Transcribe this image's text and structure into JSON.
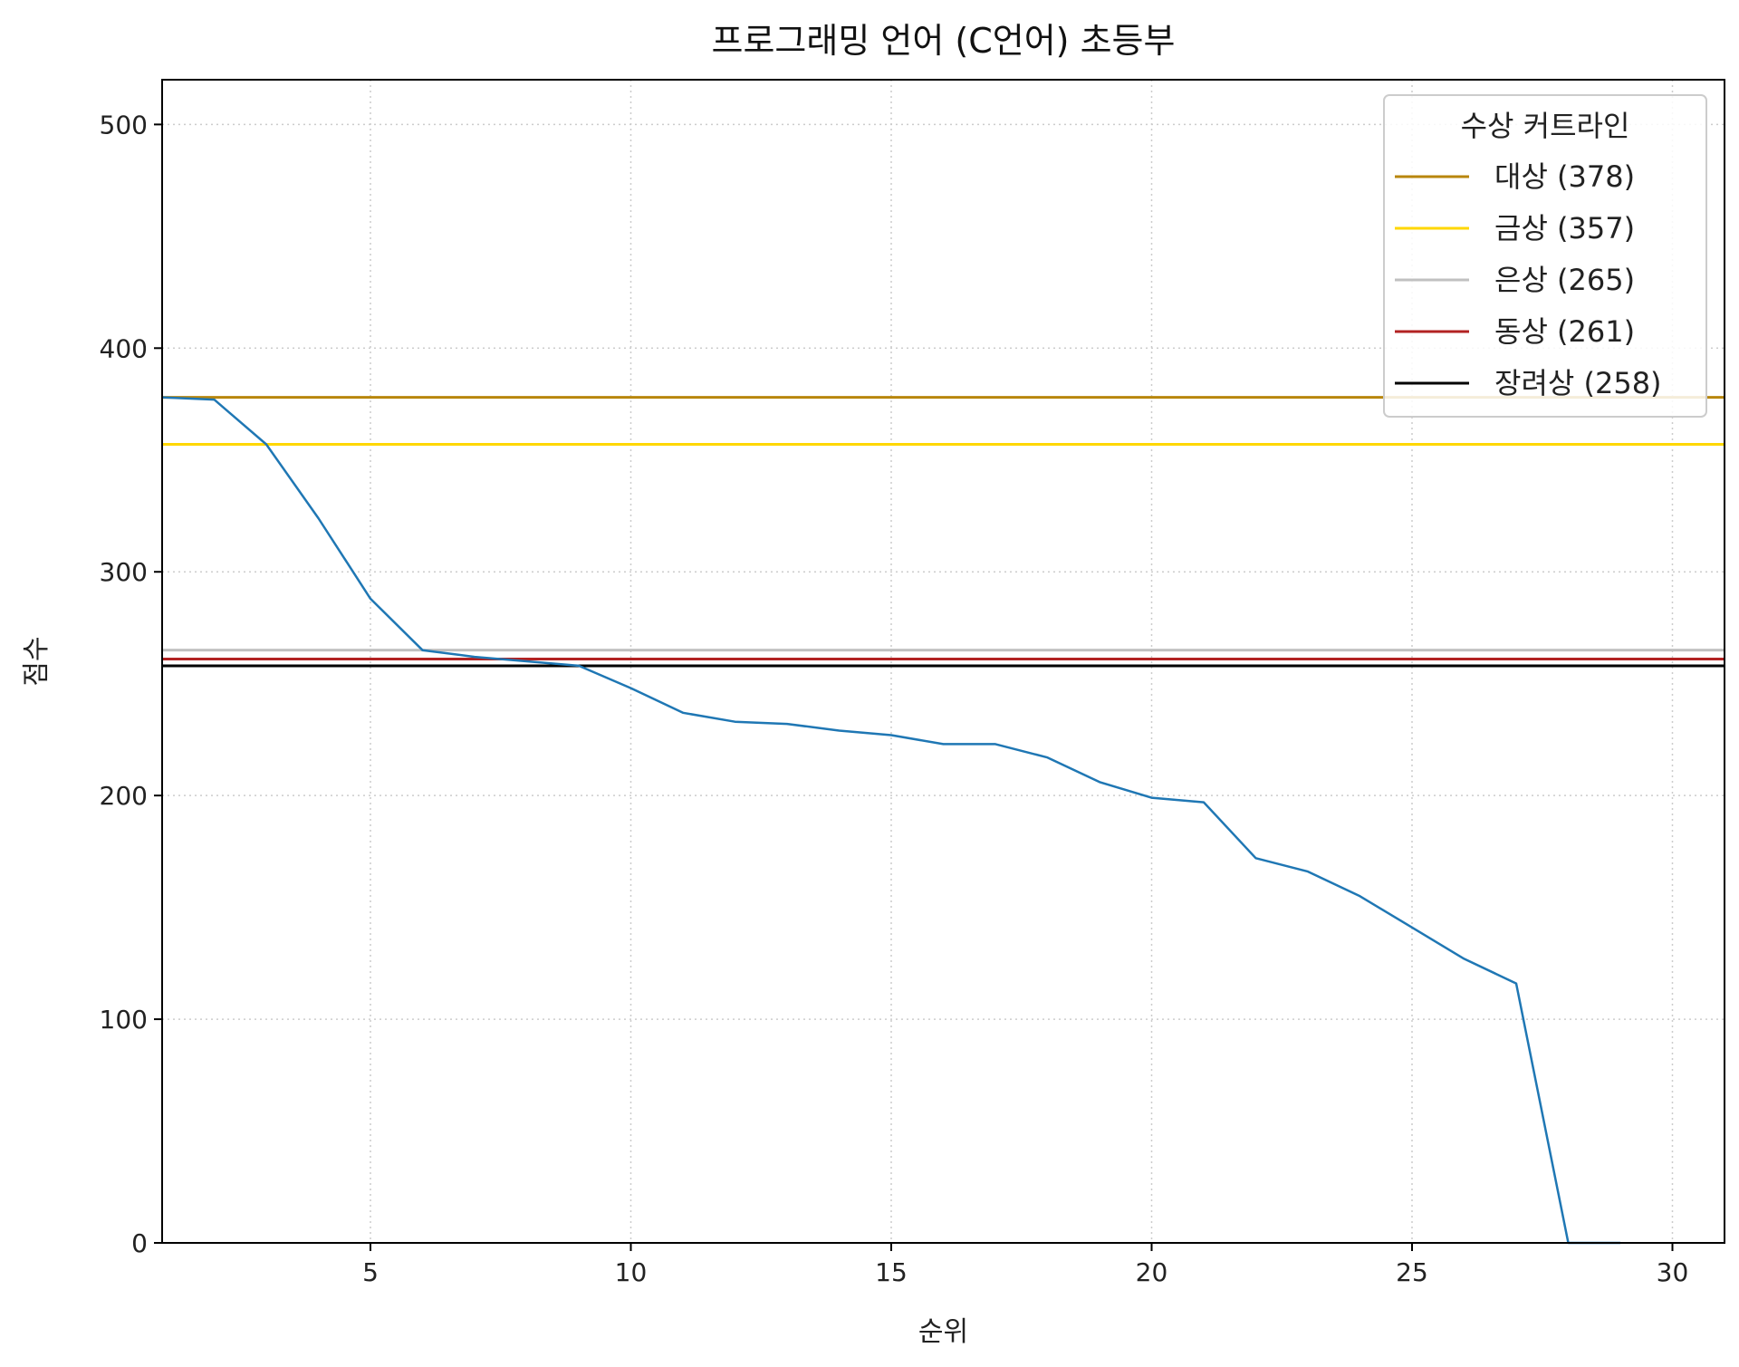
{
  "chart_data": {
    "type": "line",
    "title": "프로그래밍 언어 (C언어) 초등부",
    "xlabel": "순위",
    "ylabel": "점수",
    "xlim": [
      1,
      31
    ],
    "ylim": [
      0,
      520
    ],
    "xticks": [
      5,
      10,
      15,
      20,
      25,
      30
    ],
    "yticks": [
      0,
      100,
      200,
      300,
      400,
      500
    ],
    "grid": true,
    "legend_title": "수상 커트라인",
    "legend_position": "top-right",
    "series": [
      {
        "color": "#1f77b4",
        "x": [
          1,
          2,
          3,
          4,
          5,
          6,
          7,
          8,
          9,
          10,
          11,
          12,
          13,
          14,
          15,
          16,
          17,
          18,
          19,
          20,
          21,
          22,
          23,
          24,
          25,
          26,
          27,
          28,
          29
        ],
        "y": [
          378,
          377,
          357,
          324,
          288,
          265,
          262,
          260,
          258,
          248,
          237,
          233,
          232,
          229,
          227,
          223,
          223,
          217,
          206,
          199,
          197,
          172,
          166,
          155,
          141,
          127,
          116,
          0,
          0
        ]
      }
    ],
    "cutlines": [
      {
        "label": "대상 (378)",
        "value": 378,
        "color": "#b8860b"
      },
      {
        "label": "금상 (357)",
        "value": 357,
        "color": "#ffd700"
      },
      {
        "label": "은상 (265)",
        "value": 265,
        "color": "#c0c0c0"
      },
      {
        "label": "동상 (261)",
        "value": 261,
        "color": "#b22222"
      },
      {
        "label": "장려상 (258)",
        "value": 258,
        "color": "#000000"
      }
    ]
  }
}
